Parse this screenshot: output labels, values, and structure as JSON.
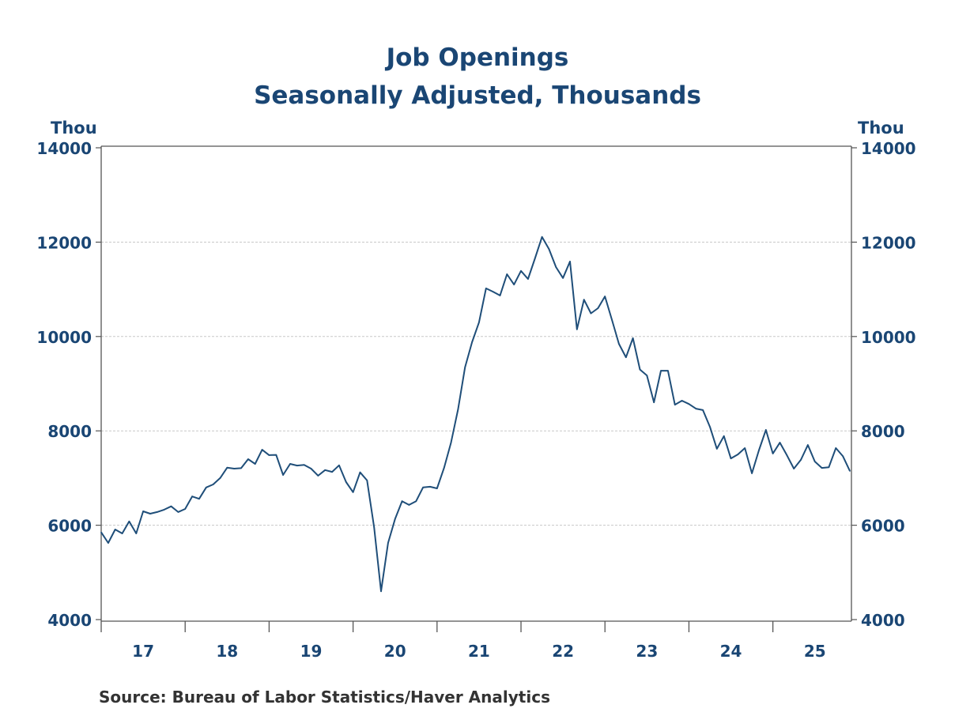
{
  "chart_data": {
    "type": "line",
    "title": "Job Openings",
    "subtitle": "Seasonally Adjusted, Thousands",
    "ylabel_left": "Thou",
    "ylabel_right": "Thou",
    "ylim": [
      4000,
      14000
    ],
    "yticks": [
      4000,
      6000,
      8000,
      10000,
      12000,
      14000
    ],
    "ytick_labels": [
      "4000",
      "6000",
      "8000",
      "10000",
      "12000",
      "14000"
    ],
    "xtick_labels": [
      "17",
      "18",
      "19",
      "20",
      "21",
      "22",
      "23",
      "24",
      "25"
    ],
    "grid": true,
    "line_color": "#1f4e79",
    "start": "2017-01",
    "frequency": "monthly",
    "series": [
      {
        "values": [
          5850,
          5625,
          5910,
          5825,
          6080,
          5825,
          6295,
          6245,
          6280,
          6330,
          6400,
          6280,
          6345,
          6610,
          6560,
          6800,
          6865,
          7000,
          7220,
          7200,
          7210,
          7400,
          7300,
          7600,
          7485,
          7490,
          7065,
          7300,
          7265,
          7280,
          7200,
          7050,
          7170,
          7130,
          7270,
          6915,
          6700,
          7120,
          6950,
          5960,
          4600,
          5625,
          6130,
          6510,
          6430,
          6510,
          6800,
          6815,
          6780,
          7215,
          7750,
          8455,
          9345,
          9880,
          10300,
          11020,
          10950,
          10870,
          11320,
          11100,
          11390,
          11220,
          11655,
          12110,
          11855,
          11470,
          11240,
          11590,
          10150,
          10780,
          10490,
          10600,
          10850,
          10350,
          9845,
          9560,
          9965,
          9300,
          9175,
          8605,
          9275,
          9275,
          8555,
          8640,
          8570,
          8470,
          8440,
          8085,
          7620,
          7890,
          7415,
          7500,
          7635,
          7100,
          7585,
          8020,
          7520,
          7750,
          7485,
          7200,
          7385,
          7700,
          7350,
          7215,
          7230,
          7635,
          7465,
          7150
        ]
      }
    ],
    "source": "Source:  Bureau of Labor Statistics/Haver Analytics"
  }
}
